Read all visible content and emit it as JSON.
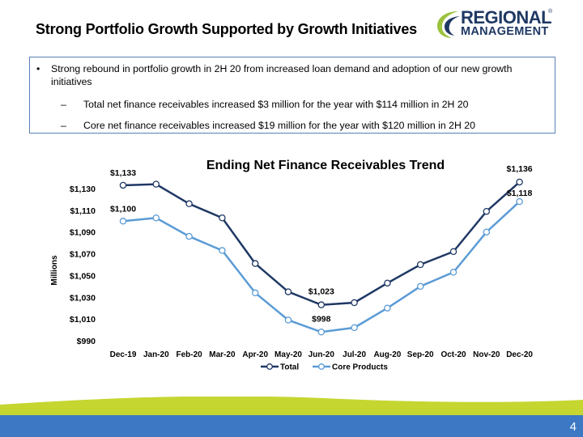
{
  "slide": {
    "title": "Strong Portfolio Growth Supported by Growth Initiatives",
    "page_number": "4"
  },
  "logo": {
    "line1": "REGIONAL",
    "line2": "MANAGEMENT",
    "reg_mark": "®"
  },
  "bullets": {
    "main": "Strong rebound in portfolio growth in 2H 20 from increased loan demand and adoption of our new growth initiatives",
    "marker": "•",
    "dash": "–",
    "sub1": "Total net finance receivables increased $3 million for the year with $114 million in 2H 20",
    "sub2": "Core net finance receivables increased $19 million for the year with $120 million in 2H 20"
  },
  "colors": {
    "total": "#1f3864",
    "core": "#5b9bd5",
    "footer_blue": "#3c78c3",
    "footer_green": "#c5d631"
  },
  "chart_data": {
    "type": "line",
    "title": "Ending Net Finance Receivables Trend",
    "ylabel": "Millions",
    "xlabel": "",
    "categories": [
      "Dec-19",
      "Jan-20",
      "Feb-20",
      "Mar-20",
      "Apr-20",
      "May-20",
      "Jun-20",
      "Jul-20",
      "Aug-20",
      "Sep-20",
      "Oct-20",
      "Nov-20",
      "Dec-20"
    ],
    "ylim": [
      990,
      1140
    ],
    "yticks": [
      990,
      1010,
      1030,
      1050,
      1070,
      1090,
      1110,
      1130
    ],
    "ytick_labels": [
      "$990",
      "$1,010",
      "$1,030",
      "$1,050",
      "$1,070",
      "$1,090",
      "$1,110",
      "$1,130"
    ],
    "grid": false,
    "legend": "bottom",
    "series": [
      {
        "name": "Total",
        "values": [
          1133,
          1134,
          1116,
          1103,
          1061,
          1035,
          1023,
          1025,
          1043,
          1060,
          1072,
          1109,
          1136
        ]
      },
      {
        "name": "Core Products",
        "values": [
          1100,
          1103,
          1086,
          1073,
          1034,
          1009,
          998,
          1002,
          1020,
          1040,
          1053,
          1090,
          1118
        ]
      }
    ],
    "annotations": [
      {
        "series": 0,
        "index": 0,
        "text": "$1,133"
      },
      {
        "series": 1,
        "index": 0,
        "text": "$1,100"
      },
      {
        "series": 0,
        "index": 6,
        "text": "$1,023"
      },
      {
        "series": 1,
        "index": 6,
        "text": "$998"
      },
      {
        "series": 0,
        "index": 12,
        "text": "$1,136"
      },
      {
        "series": 1,
        "index": 12,
        "text": "$1,118"
      }
    ]
  }
}
